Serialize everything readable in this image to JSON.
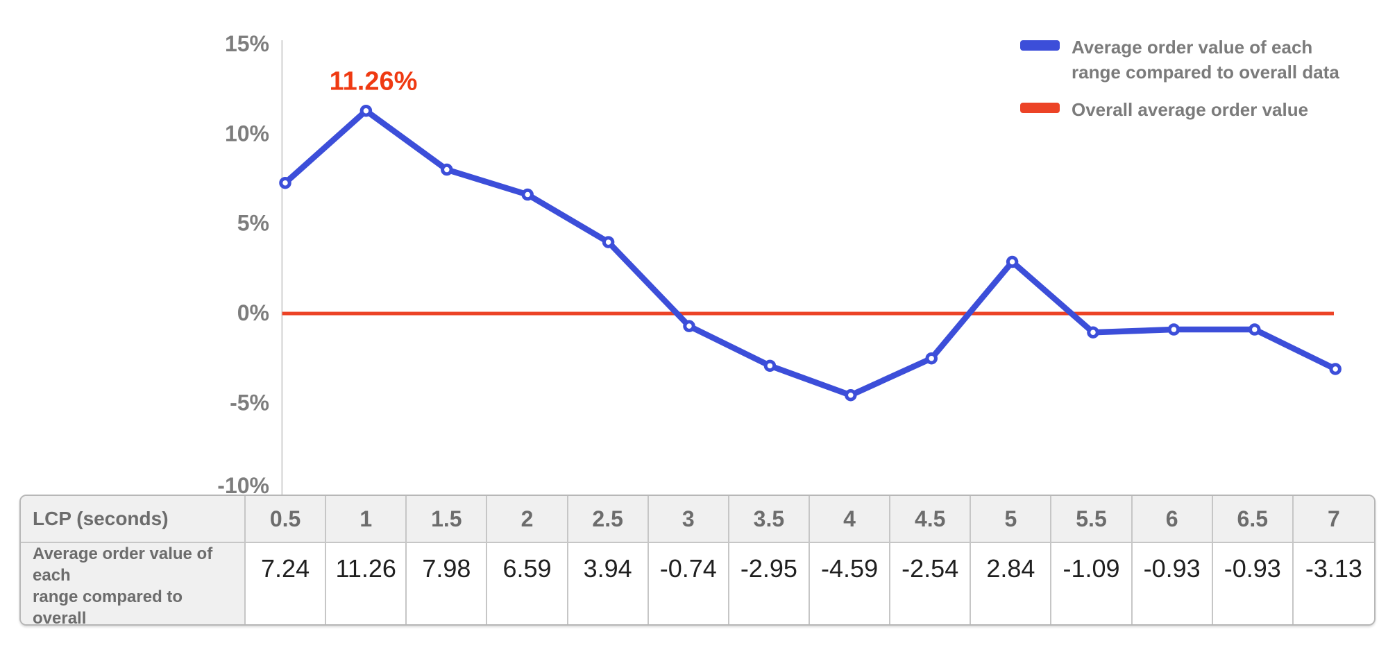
{
  "colors": {
    "blue": "#3C4ED9",
    "red": "#EC4326",
    "annotation_red": "#EF3A12",
    "axis_gray": "#dcdcdc",
    "tick_text_gray": "#7d7d7d"
  },
  "legend": {
    "series1_label": "Average order value of each\nrange compared to overall data",
    "series2_label": "Overall average order value"
  },
  "chart_data": {
    "type": "line",
    "x": [
      0.5,
      1,
      1.5,
      2,
      2.5,
      3,
      3.5,
      4,
      4.5,
      5,
      5.5,
      6,
      6.5,
      7
    ],
    "series": [
      {
        "name": "Average order value of each range compared to overall data",
        "values": [
          7.24,
          11.26,
          7.98,
          6.59,
          3.94,
          -0.74,
          -2.95,
          -4.59,
          -2.54,
          2.84,
          -1.09,
          -0.93,
          -0.93,
          -3.13
        ],
        "color": "#3C4ED9",
        "marker": "open-circle"
      },
      {
        "name": "Overall average order value",
        "type": "hline",
        "value": 0,
        "color": "#EC4326"
      }
    ],
    "annotation": {
      "text": "11.26%",
      "at_x": 1,
      "at_y": 11.26,
      "color": "#EF3A12"
    },
    "yticks": [
      "15%",
      "10%",
      "5%",
      "0%",
      "-5%",
      "-10%"
    ],
    "ylim": [
      -10,
      15
    ],
    "xlabel": "LCP (seconds)",
    "ylabel": "",
    "grid": "off",
    "legend_position": "top-right"
  },
  "table": {
    "header_label": "LCP (seconds)",
    "columns": [
      "0.5",
      "1",
      "1.5",
      "2",
      "2.5",
      "3",
      "3.5",
      "4",
      "4.5",
      "5",
      "5.5",
      "6",
      "6.5",
      "7"
    ],
    "row_label": "Average order value of each\nrange compared to overall\ndata (%)",
    "values": [
      "7.24",
      "11.26",
      "7.98",
      "6.59",
      "3.94",
      "-0.74",
      "-2.95",
      "-4.59",
      "-2.54",
      "2.84",
      "-1.09",
      "-0.93",
      "-0.93",
      "-3.13"
    ]
  }
}
